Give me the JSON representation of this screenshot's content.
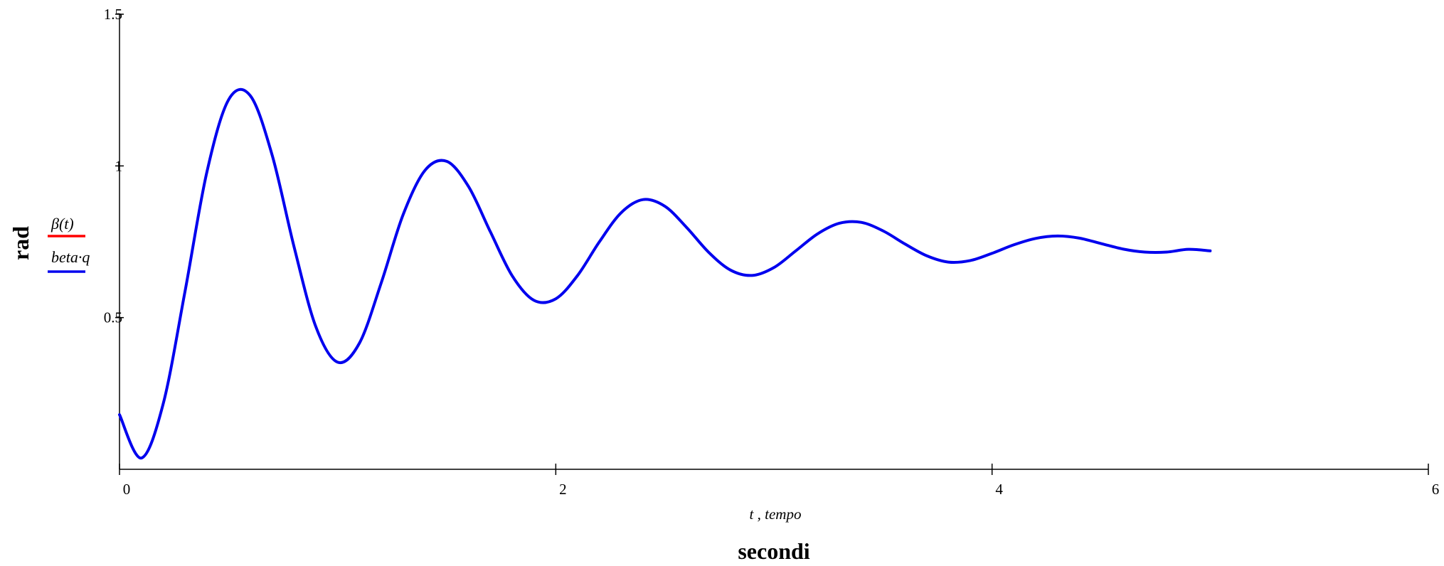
{
  "chart_data": {
    "type": "line",
    "x_axis": {
      "range": [
        0,
        6
      ],
      "ticks": [
        0,
        2,
        4,
        6
      ],
      "tick_labels": [
        "0",
        "2",
        "4",
        "6"
      ],
      "variable_label": "t , tempo",
      "unit_label": "secondi"
    },
    "y_axis": {
      "range": [
        0.0,
        1.5
      ],
      "ticks": [
        0.5,
        1,
        1.5
      ],
      "tick_labels": [
        "0.5",
        "1",
        "1.5"
      ],
      "unit_label": "rad"
    },
    "grid": false,
    "legend_placement": "left",
    "series": [
      {
        "name": "β(t)",
        "color": "#ff0000",
        "x": [],
        "y": []
      },
      {
        "name": "beta·q",
        "color": "#0000ee",
        "x": [
          0.0,
          0.1,
          0.2,
          0.3,
          0.4,
          0.5,
          0.6,
          0.7,
          0.8,
          0.9,
          1.0,
          1.1,
          1.2,
          1.3,
          1.4,
          1.5,
          1.6,
          1.7,
          1.8,
          1.9,
          2.0,
          2.1,
          2.2,
          2.3,
          2.4,
          2.5,
          2.6,
          2.7,
          2.8,
          2.9,
          3.0,
          3.1,
          3.2,
          3.3,
          3.4,
          3.5,
          3.6,
          3.7,
          3.8,
          3.9,
          4.0,
          4.1,
          4.2,
          4.3,
          4.4,
          4.5,
          4.6,
          4.7,
          4.8,
          4.9,
          5.0
        ],
        "y": [
          0.18,
          0.037,
          0.215,
          0.585,
          0.978,
          1.218,
          1.231,
          1.035,
          0.734,
          0.47,
          0.353,
          0.416,
          0.615,
          0.839,
          0.985,
          1.015,
          0.932,
          0.783,
          0.638,
          0.557,
          0.562,
          0.639,
          0.75,
          0.846,
          0.889,
          0.867,
          0.797,
          0.716,
          0.657,
          0.639,
          0.665,
          0.72,
          0.776,
          0.811,
          0.814,
          0.786,
          0.743,
          0.704,
          0.683,
          0.688,
          0.712,
          0.74,
          0.761,
          0.769,
          0.762,
          0.744,
          0.726,
          0.716,
          0.716,
          0.725,
          0.72
        ]
      }
    ]
  }
}
